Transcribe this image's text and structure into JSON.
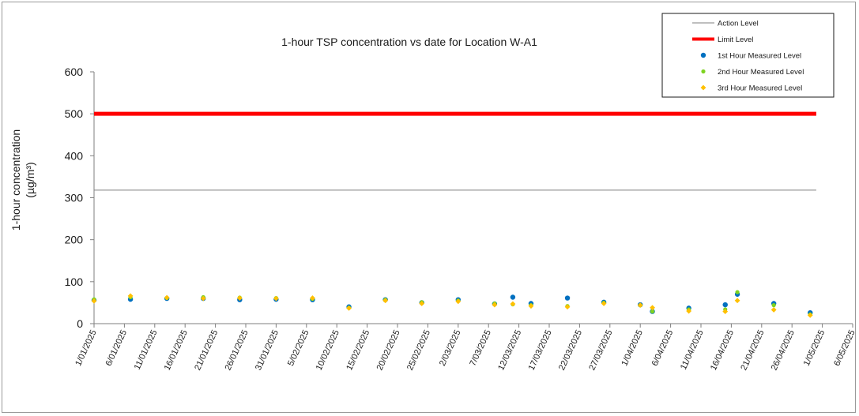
{
  "chart_data": {
    "type": "scatter",
    "title": "1-hour TSP concentration vs date for Location W-A1",
    "ylabel_line1": "1-hour concentration",
    "ylabel_line2": "(µg/m³)",
    "xlabel": "",
    "ylim": [
      0,
      600
    ],
    "yticks": [
      0,
      100,
      200,
      300,
      400,
      500,
      600
    ],
    "xlim": [
      "2025-01-01",
      "2025-05-06"
    ],
    "xtick_labels": [
      "1/01/2025",
      "6/01/2025",
      "11/01/2025",
      "16/01/2025",
      "21/01/2025",
      "26/01/2025",
      "31/01/2025",
      "5/02/2025",
      "10/02/2025",
      "15/02/2025",
      "20/02/2025",
      "25/02/2025",
      "2/03/2025",
      "7/03/2025",
      "12/03/2025",
      "17/03/2025",
      "22/03/2025",
      "27/03/2025",
      "1/04/2025",
      "6/04/2025",
      "11/04/2025",
      "16/04/2025",
      "21/04/2025",
      "26/04/2025",
      "1/05/2025",
      "6/05/2025"
    ],
    "grid": false,
    "legend_position": "top-right",
    "action_level": {
      "name": "Action Level",
      "value": 318,
      "x": [
        "2025-01-01",
        "2025-04-30"
      ],
      "color": "#7f7f7f"
    },
    "limit_level": {
      "name": "Limit Level",
      "value": 500,
      "x": [
        "2025-01-01",
        "2025-04-30"
      ],
      "color": "#ff0000"
    },
    "dates": [
      "2025-01-01",
      "2025-01-07",
      "2025-01-13",
      "2025-01-19",
      "2025-01-25",
      "2025-01-31",
      "2025-02-06",
      "2025-02-12",
      "2025-02-18",
      "2025-02-24",
      "2025-03-02",
      "2025-03-08",
      "2025-03-11",
      "2025-03-14",
      "2025-03-20",
      "2025-03-26",
      "2025-04-01",
      "2025-04-03",
      "2025-04-09",
      "2025-04-15",
      "2025-04-17",
      "2025-04-23",
      "2025-04-29"
    ],
    "series": [
      {
        "name": "1st Hour Measured Level",
        "color": "#0070c0",
        "marker": "circle",
        "values": [
          56,
          58,
          60,
          60,
          57,
          58,
          57,
          40,
          57,
          50,
          57,
          47,
          63,
          48,
          61,
          51,
          45,
          29,
          37,
          45,
          70,
          48,
          26
        ]
      },
      {
        "name": "2nd Hour Measured Level",
        "color": "#7ed321",
        "marker": "dot",
        "values": [
          58,
          63,
          61,
          63,
          62,
          61,
          59,
          38,
          57,
          51,
          55,
          48,
          46,
          44,
          42,
          50,
          44,
          29,
          34,
          34,
          75,
          44,
          22
        ]
      },
      {
        "name": "3rd Hour Measured Level",
        "color": "#ffc000",
        "marker": "diamond",
        "values": [
          54,
          66,
          62,
          60,
          61,
          60,
          61,
          37,
          55,
          48,
          53,
          45,
          47,
          42,
          40,
          48,
          44,
          38,
          30,
          29,
          55,
          33,
          20
        ]
      }
    ]
  }
}
